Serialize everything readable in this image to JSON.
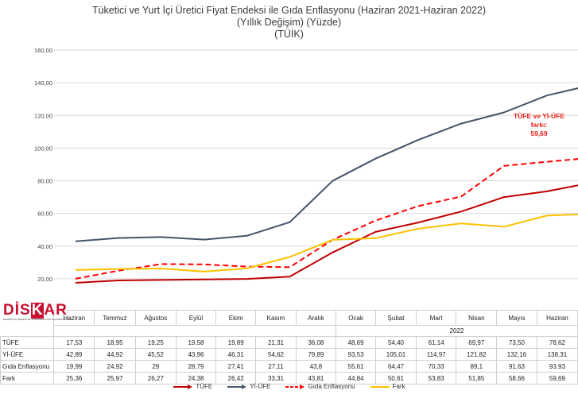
{
  "titles": {
    "line1": "Tüketici ve Yurt İçi Üretici Fiyat Endeksi ile Gıda Enflasyonu (Haziran 2021-Haziran 2022)",
    "line2": "(Yıllık Değişim) (Yüzde)",
    "line3": "(TÜİK)"
  },
  "logo": {
    "text_a": "DİS",
    "text_k": "K",
    "text_b": "AR",
    "subtitle": "DEVRİMCİ İŞÇİ SENDİKALARI KONFEDERASYONU ARAŞTIRMA DAİRESİ"
  },
  "annotation": {
    "line1": "TÜFE ve Yİ-ÜFE",
    "line2": "farkı:",
    "line3": "59,69"
  },
  "year_label": "2022",
  "chart_data": {
    "type": "line",
    "categories": [
      "Haziran",
      "Temmuz",
      "Ağustos",
      "Eylül",
      "Ekim",
      "Kasım",
      "Aralık",
      "Ocak",
      "Şubat",
      "Mart",
      "Nisan",
      "Mayıs",
      "Haziran"
    ],
    "ylim": [
      0,
      160
    ],
    "yticks": [
      "20,00",
      "40,00",
      "60,00",
      "80,00",
      "100,00",
      "120,00",
      "140,00",
      "160,00"
    ],
    "grid": true,
    "legend_position": "bottom",
    "series": [
      {
        "name": "TÜFE",
        "color": "#c00000",
        "dash": "solid",
        "arrow": true,
        "values": [
          17.53,
          18.95,
          19.25,
          19.58,
          19.89,
          21.31,
          36.08,
          48.69,
          54.4,
          61.14,
          69.97,
          73.5,
          78.62
        ],
        "labels": [
          "17,53",
          "18,95",
          "19,25",
          "19,58",
          "19,89",
          "21,31",
          "36,08",
          "48,69",
          "54,40",
          "61,14",
          "69,97",
          "73,50",
          "78,62"
        ]
      },
      {
        "name": "Yİ-ÜFE",
        "color": "#44546a",
        "dash": "solid",
        "arrow": true,
        "values": [
          42.89,
          44.92,
          45.52,
          43.96,
          46.31,
          54.62,
          79.89,
          93.53,
          105.01,
          114.97,
          121.82,
          132.16,
          138.31
        ],
        "labels": [
          "42,89",
          "44,92",
          "45,52",
          "43,96",
          "46,31",
          "54,62",
          "79,89",
          "93,53",
          "105,01",
          "114,97",
          "121,82",
          "132,16",
          "138,31"
        ]
      },
      {
        "name": "Gıda Enflasyonu",
        "color": "#ff0000",
        "dash": "dashed",
        "arrow": true,
        "values": [
          19.99,
          24.92,
          29,
          28.79,
          27.41,
          27.11,
          43.8,
          55.61,
          64.47,
          70.33,
          89.1,
          91.63,
          93.93
        ],
        "labels": [
          "19,99",
          "24,92",
          "29",
          "28,79",
          "27,41",
          "27,11",
          "43,8",
          "55,61",
          "64,47",
          "70,33",
          "89,1",
          "91,63",
          "93,93"
        ]
      },
      {
        "name": "Fark",
        "color": "#ffc000",
        "dash": "solid",
        "arrow": false,
        "values": [
          25.36,
          25.97,
          26.27,
          24.38,
          26.42,
          33.31,
          43.81,
          44.84,
          50.61,
          53.83,
          51.85,
          58.66,
          59.69
        ],
        "labels": [
          "25,36",
          "25,97",
          "26,27",
          "24,38",
          "26,42",
          "33,31",
          "43,81",
          "44,84",
          "50,61",
          "53,83",
          "51,85",
          "58,66",
          "59,69"
        ]
      }
    ]
  }
}
